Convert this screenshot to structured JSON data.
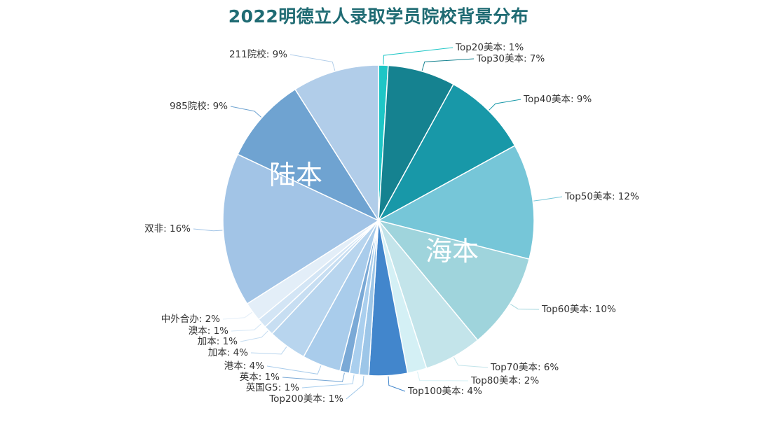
{
  "title": "2022明德立人录取学员院校背景分布",
  "chart_data": {
    "type": "pie",
    "title": "2022明德立人录取学员院校背景分布",
    "group_labels": [
      {
        "name": "海本",
        "color": "#ffffff"
      },
      {
        "name": "陆本",
        "color": "#ffffff"
      }
    ],
    "slices": [
      {
        "name": "Top20美本",
        "value": 1,
        "label": "Top20美本: 1%",
        "color": "#1ec6c6"
      },
      {
        "name": "Top30美本",
        "value": 7,
        "label": "Top30美本: 7%",
        "color": "#158290"
      },
      {
        "name": "Top40美本",
        "value": 9,
        "label": "Top40美本: 9%",
        "color": "#1898a8"
      },
      {
        "name": "Top50美本",
        "value": 12,
        "label": "Top50美本: 12%",
        "color": "#76c6d8"
      },
      {
        "name": "Top60美本",
        "value": 10,
        "label": "Top60美本: 10%",
        "color": "#9fd4dc"
      },
      {
        "name": "Top70美本",
        "value": 6,
        "label": "Top70美本: 6%",
        "color": "#c3e4ea"
      },
      {
        "name": "Top80美本",
        "value": 2,
        "label": "Top80美本: 2%",
        "color": "#d4f0f5"
      },
      {
        "name": "Top100美本",
        "value": 4,
        "label": "Top100美本: 4%",
        "color": "#4286cc"
      },
      {
        "name": "Top200美本",
        "value": 1,
        "label": "Top200美本: 1%",
        "color": "#9dc6e8"
      },
      {
        "name": "英国G5",
        "value": 1,
        "label": "英国G5: 1%",
        "color": "#aacfee"
      },
      {
        "name": "英本",
        "value": 1,
        "label": "英本: 1%",
        "color": "#7aa9d6"
      },
      {
        "name": "港本",
        "value": 4,
        "label": "港本: 4%",
        "color": "#a9cceb"
      },
      {
        "name": "加本",
        "value": 4,
        "label": "加本: 4%",
        "color": "#b8d5ee"
      },
      {
        "name": "加本",
        "value": 1,
        "label": "加本: 1%",
        "color": "#c7def2"
      },
      {
        "name": "澳本",
        "value": 1,
        "label": "澳本: 1%",
        "color": "#d3e5f5"
      },
      {
        "name": "中外合办",
        "value": 2,
        "label": "中外合办: 2%",
        "color": "#e3eef8"
      },
      {
        "name": "双非",
        "value": 16,
        "label": "双非: 16%",
        "color": "#a2c4e6"
      },
      {
        "name": "985院校",
        "value": 9,
        "label": "985院校: 9%",
        "color": "#6fa3d1"
      },
      {
        "name": "211院校",
        "value": 9,
        "label": "211院校: 9%",
        "color": "#b1cde9"
      }
    ]
  }
}
